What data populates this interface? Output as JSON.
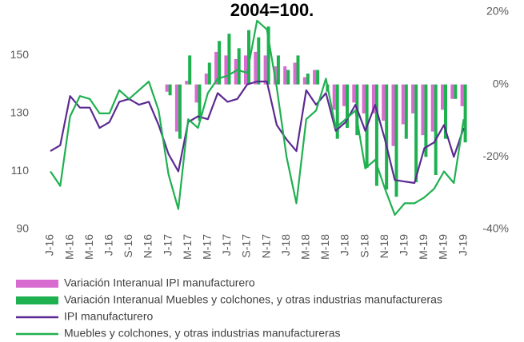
{
  "chart_data": {
    "type": "combo",
    "title": "2004=100.",
    "categories": [
      "J-16",
      null,
      "M-16",
      null,
      "M-16",
      null,
      "J-16",
      null,
      "S-16",
      null,
      "N-16",
      null,
      "J-17",
      null,
      "M-17",
      null,
      "M-17",
      null,
      "J-17",
      null,
      "S-17",
      null,
      "N-17",
      null,
      "J-18",
      null,
      "M-18",
      null,
      "M-18",
      null,
      "J-18",
      null,
      "S-18",
      null,
      "N-18",
      null,
      "J-19",
      null,
      "M-19",
      null,
      "M-19",
      null,
      "J-19"
    ],
    "ylim": [
      90,
      165
    ],
    "yticks": [
      90,
      110,
      130,
      150
    ],
    "y2lim": [
      -40,
      20
    ],
    "y2ticks": [
      {
        "value": -40,
        "label": "-40%"
      },
      {
        "value": -20,
        "label": "-20%"
      },
      {
        "value": 0,
        "label": "0%"
      },
      {
        "value": 20,
        "label": "20%"
      }
    ],
    "series": [
      {
        "name": "Variación Interanual IPI manufacturero",
        "type": "bar",
        "axis": "y2",
        "color": "#d86bd0",
        "values": [
          null,
          null,
          null,
          null,
          null,
          null,
          null,
          null,
          null,
          null,
          null,
          null,
          -2,
          -13,
          1,
          -5,
          3,
          9,
          8,
          7,
          8,
          9,
          8,
          5,
          5,
          6,
          2,
          4,
          0,
          -7,
          -6,
          -5,
          -8,
          -8,
          -10,
          -17,
          -11,
          -8,
          -14,
          -13,
          -7,
          -4,
          -6
        ]
      },
      {
        "name": "Variación Interanual Muebles y colchones, y otras industrias manufactureras",
        "type": "bar",
        "axis": "y2",
        "color": "#1fb050",
        "values": [
          null,
          null,
          null,
          null,
          null,
          null,
          null,
          null,
          null,
          null,
          null,
          null,
          -3,
          -15,
          8,
          -10,
          6,
          12,
          14,
          10,
          15,
          13,
          16,
          8,
          4,
          8,
          3,
          4,
          -2,
          -15,
          -12,
          -14,
          -23,
          -28,
          -29,
          -31,
          -15,
          -27,
          -20,
          -25,
          -15,
          -4,
          -16
        ]
      },
      {
        "name": "IPI manufacturero",
        "type": "line",
        "axis": "y",
        "color": "#5b2a91",
        "values": [
          117,
          119,
          136,
          132,
          132,
          125,
          127,
          134,
          135,
          133,
          134,
          126,
          116,
          110,
          127,
          129,
          128,
          137,
          134,
          135,
          140,
          141,
          141,
          126,
          121,
          117,
          138,
          133,
          137,
          124,
          127,
          133,
          124,
          133,
          121,
          107,
          106.5,
          106,
          118,
          120,
          126,
          115,
          125
        ]
      },
      {
        "name": "Muebles y colchones, y otras industrias manufactureras",
        "type": "line",
        "axis": "y",
        "color": "#1fb050",
        "values": [
          110,
          105,
          129,
          136,
          135,
          130,
          130,
          138,
          135,
          138,
          141,
          131,
          109,
          97,
          128,
          125,
          137,
          142,
          143,
          145,
          144,
          162,
          159,
          139,
          115,
          99,
          128,
          131,
          142,
          125,
          128,
          131,
          111,
          114,
          104,
          95,
          99,
          99,
          101,
          104,
          110,
          106,
          128
        ]
      }
    ]
  }
}
